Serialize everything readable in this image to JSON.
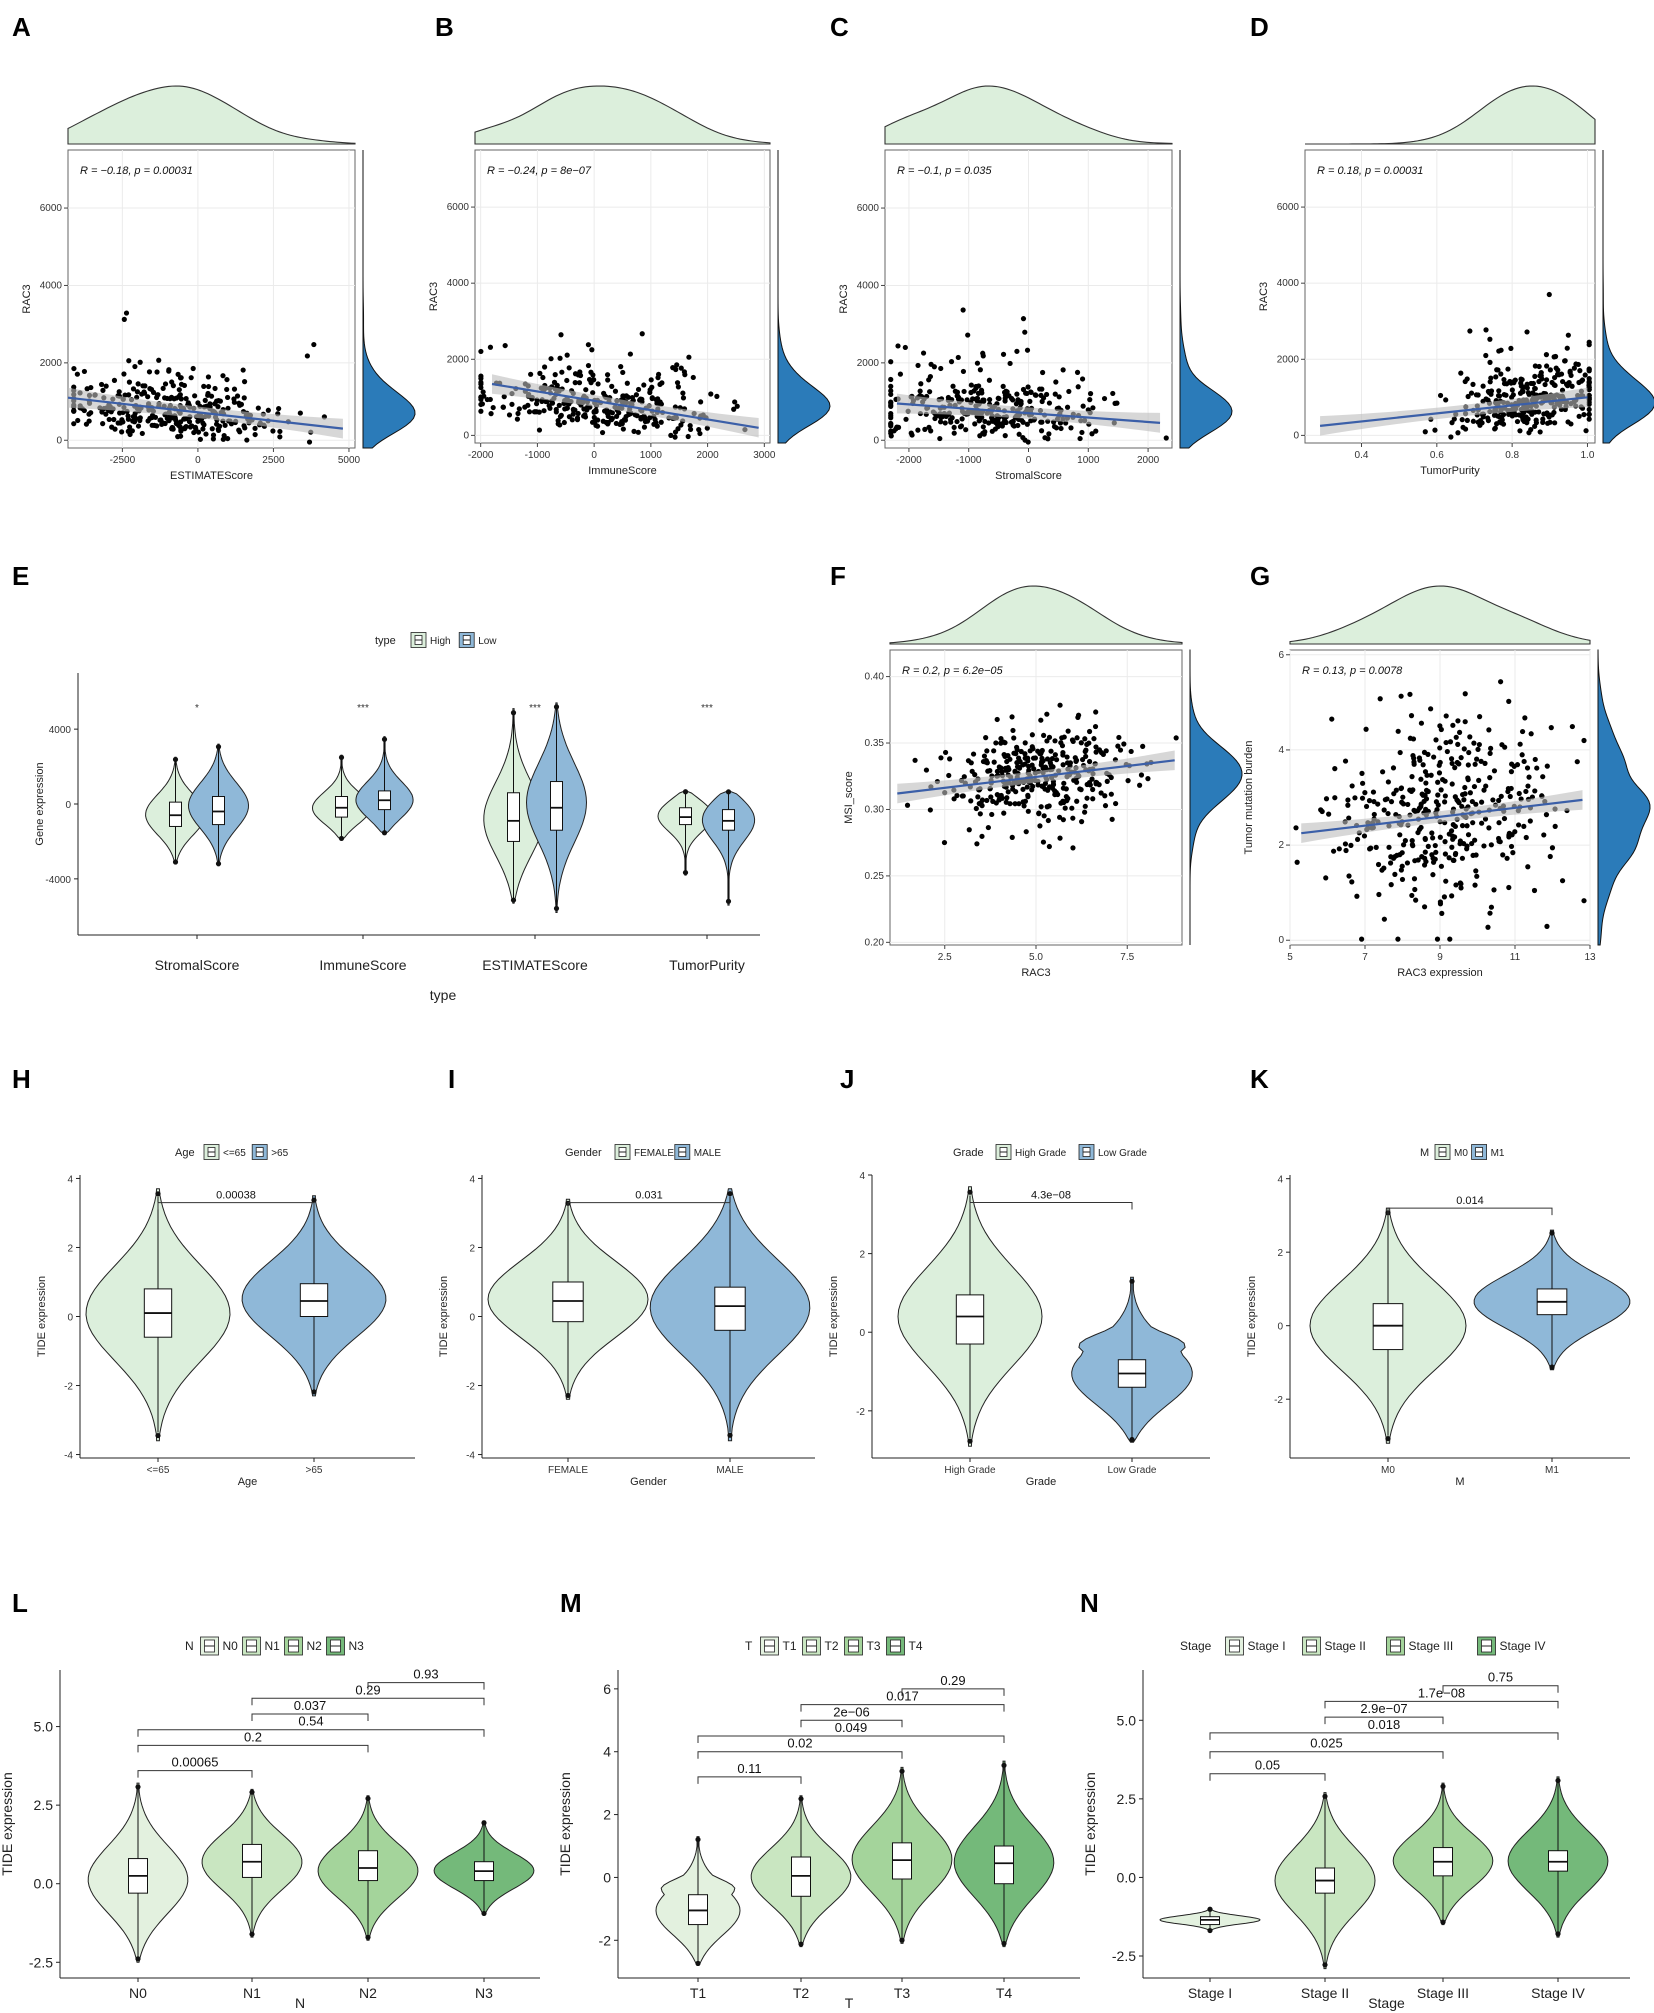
{
  "panels_text": {
    "labels": [
      "A",
      "B",
      "C",
      "D",
      "E",
      "F",
      "G",
      "H",
      "I",
      "J",
      "K",
      "L",
      "M",
      "N"
    ]
  },
  "colors": {
    "density_top": "#dcefdc",
    "density_right": "#2b7bb9",
    "point": "#000000",
    "fit_line": "#3b5fa8",
    "ci_band": "#bdbdbd",
    "grid": "#ebebeb",
    "violin_green": "#dcefdc",
    "violin_blue": "#8fb8d8",
    "greens": [
      "#e3f1df",
      "#c9e6c1",
      "#a4d49b",
      "#74b97a"
    ]
  },
  "chart_data": [
    {
      "id": "A",
      "type": "scatter",
      "annotation": "R = −0.18, p = 0.00031",
      "xlabel": "ESTIMATEScore",
      "ylabel": "RAC3",
      "xlim": [
        -4300,
        5200
      ],
      "ylim": [
        -200,
        7500
      ],
      "xticks": [
        -2500,
        0,
        2500,
        5000
      ],
      "xtick_labels": [
        "-2500",
        "0",
        "2500",
        "5000"
      ],
      "yticks": [
        0,
        2000,
        4000,
        6000
      ],
      "ytick_labels": [
        "0",
        "2000",
        "4000",
        "6000"
      ],
      "fit": {
        "x": [
          -4300,
          4800
        ],
        "y": [
          1100,
          300
        ]
      },
      "n_points": 330,
      "x_center": -700,
      "x_spread": 1900,
      "seed": 11
    },
    {
      "id": "B",
      "type": "scatter",
      "annotation": "R = −0.24, p = 8e−07",
      "xlabel": "ImmuneScore",
      "ylabel": "RAC3",
      "xlim": [
        -2100,
        3100
      ],
      "ylim": [
        -200,
        7500
      ],
      "xticks": [
        -2000,
        -1000,
        0,
        1000,
        2000,
        3000
      ],
      "xtick_labels": [
        "-2000",
        "-1000",
        "0",
        "1000",
        "2000",
        "3000"
      ],
      "yticks": [
        0,
        2000,
        4000,
        6000
      ],
      "ytick_labels": [
        "0",
        "2000",
        "4000",
        "6000"
      ],
      "fit": {
        "x": [
          -1800,
          2900
        ],
        "y": [
          1350,
          200
        ]
      },
      "n_points": 330,
      "x_center": 100,
      "x_spread": 1000,
      "seed": 23
    },
    {
      "id": "C",
      "type": "scatter",
      "annotation": "R = −0.1, p = 0.035",
      "xlabel": "StromalScore",
      "ylabel": "RAC3",
      "xlim": [
        -2400,
        2400
      ],
      "ylim": [
        -200,
        7500
      ],
      "xticks": [
        -2000,
        -1000,
        0,
        1000,
        2000
      ],
      "xtick_labels": [
        "-2000",
        "-1000",
        "0",
        "1000",
        "2000"
      ],
      "yticks": [
        0,
        2000,
        4000,
        6000
      ],
      "ytick_labels": [
        "0",
        "2000",
        "4000",
        "6000"
      ],
      "fit": {
        "x": [
          -2200,
          2200
        ],
        "y": [
          950,
          450
        ]
      },
      "n_points": 330,
      "x_center": -600,
      "x_spread": 1000,
      "seed": 37
    },
    {
      "id": "D",
      "type": "scatter",
      "annotation": "R = 0.18, p = 0.00031",
      "xlabel": "TumorPurity",
      "ylabel": "RAC3",
      "xlim": [
        0.25,
        1.02
      ],
      "ylim": [
        -200,
        7500
      ],
      "xticks": [
        0.4,
        0.6,
        0.8,
        1.0
      ],
      "xtick_labels": [
        "0.4",
        "0.6",
        "0.8",
        "1.0"
      ],
      "yticks": [
        0,
        2000,
        4000,
        6000
      ],
      "ytick_labels": [
        "0",
        "2000",
        "4000",
        "6000"
      ],
      "fit": {
        "x": [
          0.29,
          1.0
        ],
        "y": [
          250,
          1000
        ]
      },
      "n_points": 330,
      "x_center": 0.85,
      "x_spread": 0.11,
      "seed": 41
    },
    {
      "id": "E",
      "type": "violin",
      "legend_title": "type",
      "legend_items": [
        "High",
        "Low"
      ],
      "xlabel": "type",
      "ylabel": "Gene expression",
      "ylim": [
        -7000,
        7000
      ],
      "yticks": [
        -4000,
        0,
        4000
      ],
      "ytick_labels": [
        "-4000",
        "0",
        "4000"
      ],
      "categories": [
        "StromalScore",
        "ImmuneScore",
        "ESTIMATEScore",
        "TumorPurity"
      ],
      "significance": [
        "*",
        "***",
        "***",
        "***"
      ],
      "groups": [
        {
          "cat": 0,
          "name": "High",
          "min": -3200,
          "max": 2500,
          "q1": -1200,
          "med": -600,
          "q3": 100,
          "mode": -600
        },
        {
          "cat": 0,
          "name": "Low",
          "min": -3300,
          "max": 3200,
          "q1": -1100,
          "med": -400,
          "q3": 400,
          "mode": -100
        },
        {
          "cat": 1,
          "name": "High",
          "min": -1900,
          "max": 2600,
          "q1": -700,
          "med": -200,
          "q3": 400,
          "mode": -300
        },
        {
          "cat": 1,
          "name": "Low",
          "min": -1600,
          "max": 3600,
          "q1": -300,
          "med": 200,
          "q3": 700,
          "mode": 100
        },
        {
          "cat": 2,
          "name": "High",
          "min": -5300,
          "max": 5100,
          "q1": -2000,
          "med": -900,
          "q3": 600,
          "mode": -900
        },
        {
          "cat": 2,
          "name": "Low",
          "min": -5800,
          "max": 5400,
          "q1": -1400,
          "med": -200,
          "q3": 1200,
          "mode": 100
        },
        {
          "cat": 3,
          "name": "High",
          "min": -3800,
          "max": 700,
          "q1": -1100,
          "med": -700,
          "q3": -200,
          "mode": -500
        },
        {
          "cat": 3,
          "name": "Low",
          "min": -5400,
          "max": 700,
          "q1": -1400,
          "med": -900,
          "q3": -300,
          "mode": -600
        }
      ]
    },
    {
      "id": "F",
      "type": "scatter",
      "annotation": "R = 0.2, p = 6.2e−05",
      "xlabel": "RAC3",
      "ylabel": "MSI_score",
      "xlim": [
        1.0,
        9.0
      ],
      "ylim": [
        0.198,
        0.42
      ],
      "xticks": [
        2.5,
        5.0,
        7.5
      ],
      "xtick_labels": [
        "2.5",
        "5.0",
        "7.5"
      ],
      "yticks": [
        0.2,
        0.25,
        0.3,
        0.35,
        0.4
      ],
      "ytick_labels": [
        "0.20",
        "0.25",
        "0.30",
        "0.35",
        "0.40"
      ],
      "fit": {
        "x": [
          1.2,
          8.8
        ],
        "y": [
          0.312,
          0.337
        ]
      },
      "n_points": 360,
      "x_center": 5.2,
      "x_spread": 1.4,
      "seed": 53
    },
    {
      "id": "G",
      "type": "scatter",
      "annotation": "R = 0.13, p = 0.0078",
      "xlabel": "RAC3 expression",
      "ylabel": "Tumor mutation burden",
      "xlim": [
        5,
        13
      ],
      "ylim": [
        -0.1,
        6.1
      ],
      "xticks": [
        5,
        7,
        9,
        11,
        13
      ],
      "xtick_labels": [
        "5",
        "7",
        "9",
        "11",
        "13"
      ],
      "yticks": [
        0,
        2,
        4,
        6
      ],
      "ytick_labels": [
        "0",
        "2",
        "4",
        "6"
      ],
      "fit": {
        "x": [
          5.3,
          12.8
        ],
        "y": [
          2.25,
          2.95
        ]
      },
      "n_points": 400,
      "x_center": 9.0,
      "x_spread": 1.4,
      "seed": 67
    },
    {
      "id": "H",
      "type": "violin",
      "legend_title": "Age",
      "legend_items": [
        "<=65",
        ">65"
      ],
      "xlabel": "Age",
      "ylabel": "TIDE expression",
      "ylim": [
        -4.1,
        4.1
      ],
      "yticks": [
        -4,
        -2,
        0,
        2,
        4
      ],
      "ytick_labels": [
        "-4",
        "-2",
        "0",
        "2",
        "4"
      ],
      "categories": [
        "<=65",
        ">65"
      ],
      "brackets": [
        {
          "a": 0,
          "b": 1,
          "label": "0.00038",
          "y": 3.3
        }
      ],
      "groups": [
        {
          "cat": 0,
          "min": -3.6,
          "max": 3.7,
          "q1": -0.6,
          "med": 0.1,
          "q3": 0.8,
          "mode": 0.1
        },
        {
          "cat": 1,
          "min": -2.3,
          "max": 3.5,
          "q1": 0.0,
          "med": 0.45,
          "q3": 0.95,
          "mode": 0.5
        }
      ]
    },
    {
      "id": "I",
      "type": "violin",
      "legend_title": "Gender",
      "legend_items": [
        "FEMALE",
        "MALE"
      ],
      "xlabel": "Gender",
      "ylabel": "TIDE expression",
      "ylim": [
        -4.1,
        4.1
      ],
      "yticks": [
        -4,
        -2,
        0,
        2,
        4
      ],
      "ytick_labels": [
        "-4",
        "-2",
        "0",
        "2",
        "4"
      ],
      "categories": [
        "FEMALE",
        "MALE"
      ],
      "brackets": [
        {
          "a": 0,
          "b": 1,
          "label": "0.031",
          "y": 3.3
        }
      ],
      "groups": [
        {
          "cat": 0,
          "min": -2.4,
          "max": 3.4,
          "q1": -0.15,
          "med": 0.45,
          "q3": 1.0,
          "mode": 0.5
        },
        {
          "cat": 1,
          "min": -3.6,
          "max": 3.7,
          "q1": -0.4,
          "med": 0.3,
          "q3": 0.85,
          "mode": 0.3
        }
      ]
    },
    {
      "id": "J",
      "type": "violin",
      "legend_title": "Grade",
      "legend_items": [
        "High Grade",
        "Low Grade"
      ],
      "xlabel": "Grade",
      "ylabel": "TIDE expression",
      "ylim": [
        -3.2,
        4.0
      ],
      "yticks": [
        -2,
        0,
        2,
        4
      ],
      "ytick_labels": [
        "-2",
        "0",
        "2",
        "4"
      ],
      "categories": [
        "High Grade",
        "Low Grade"
      ],
      "brackets": [
        {
          "a": 0,
          "b": 1,
          "label": "4.3e−08",
          "y": 3.3
        }
      ],
      "groups": [
        {
          "cat": 0,
          "min": -2.9,
          "max": 3.7,
          "q1": -0.3,
          "med": 0.4,
          "q3": 0.95,
          "mode": 0.4
        },
        {
          "cat": 1,
          "min": -2.8,
          "max": 1.4,
          "q1": -1.4,
          "med": -1.05,
          "q3": -0.7,
          "mode": -1.1
        }
      ]
    },
    {
      "id": "K",
      "type": "violin",
      "legend_title": "M",
      "legend_items": [
        "M0",
        "M1"
      ],
      "xlabel": "M",
      "ylabel": "TIDE expression",
      "ylim": [
        -3.6,
        4.1
      ],
      "yticks": [
        -2,
        0,
        2,
        4
      ],
      "ytick_labels": [
        "-2",
        "0",
        "2",
        "4"
      ],
      "categories": [
        "M0",
        "M1"
      ],
      "brackets": [
        {
          "a": 0,
          "b": 1,
          "label": "0.014",
          "y": 3.2
        }
      ],
      "groups": [
        {
          "cat": 0,
          "min": -3.2,
          "max": 3.2,
          "q1": -0.65,
          "med": 0.0,
          "q3": 0.6,
          "mode": 0.0
        },
        {
          "cat": 1,
          "min": -1.2,
          "max": 2.6,
          "q1": 0.3,
          "med": 0.65,
          "q3": 1.0,
          "mode": 0.65
        }
      ]
    },
    {
      "id": "L",
      "type": "violin",
      "legend_title": "N",
      "legend_items": [
        "N0",
        "N1",
        "N2",
        "N3"
      ],
      "xlabel": "N",
      "ylabel": "TIDE expression",
      "ylim": [
        -3.0,
        6.8
      ],
      "yticks": [
        -2.5,
        0.0,
        2.5,
        5.0
      ],
      "ytick_labels": [
        "-2.5",
        "0.0",
        "2.5",
        "5.0"
      ],
      "categories": [
        "N0",
        "N1",
        "N2",
        "N3"
      ],
      "brackets": [
        {
          "a": 0,
          "b": 1,
          "label": "0.00065",
          "y": 3.6
        },
        {
          "a": 0,
          "b": 2,
          "label": "0.2",
          "y": 4.4
        },
        {
          "a": 0,
          "b": 3,
          "label": "0.54",
          "y": 4.9
        },
        {
          "a": 1,
          "b": 2,
          "label": "0.037",
          "y": 5.4
        },
        {
          "a": 1,
          "b": 3,
          "label": "0.29",
          "y": 5.9
        },
        {
          "a": 2,
          "b": 3,
          "label": "0.93",
          "y": 6.4
        }
      ],
      "groups": [
        {
          "cat": 0,
          "min": -2.5,
          "max": 3.2,
          "q1": -0.3,
          "med": 0.25,
          "q3": 0.8,
          "mode": 0.1
        },
        {
          "cat": 1,
          "min": -1.7,
          "max": 3.0,
          "q1": 0.2,
          "med": 0.7,
          "q3": 1.25,
          "mode": 0.7
        },
        {
          "cat": 2,
          "min": -1.8,
          "max": 2.8,
          "q1": 0.1,
          "med": 0.5,
          "q3": 1.05,
          "mode": 0.4
        },
        {
          "cat": 3,
          "min": -1.0,
          "max": 2.0,
          "q1": 0.1,
          "med": 0.4,
          "q3": 0.7,
          "mode": 0.4
        }
      ]
    },
    {
      "id": "M",
      "type": "violin",
      "legend_title": "T",
      "legend_items": [
        "T1",
        "T2",
        "T3",
        "T4"
      ],
      "xlabel": "T",
      "ylabel": "TIDE expression",
      "ylim": [
        -3.2,
        6.6
      ],
      "yticks": [
        -2,
        0,
        2,
        4,
        6
      ],
      "ytick_labels": [
        "-2",
        "0",
        "2",
        "4",
        "6"
      ],
      "categories": [
        "T1",
        "T2",
        "T3",
        "T4"
      ],
      "brackets": [
        {
          "a": 0,
          "b": 1,
          "label": "0.11",
          "y": 3.2
        },
        {
          "a": 0,
          "b": 2,
          "label": "0.02",
          "y": 4.0
        },
        {
          "a": 0,
          "b": 3,
          "label": "0.049",
          "y": 4.5
        },
        {
          "a": 1,
          "b": 2,
          "label": "2e−06",
          "y": 5.0
        },
        {
          "a": 1,
          "b": 3,
          "label": "0.017",
          "y": 5.5
        },
        {
          "a": 2,
          "b": 3,
          "label": "0.29",
          "y": 6.0
        }
      ],
      "groups": [
        {
          "cat": 0,
          "min": -2.8,
          "max": 1.3,
          "q1": -1.5,
          "med": -1.05,
          "q3": -0.55,
          "mode": -1.1
        },
        {
          "cat": 1,
          "min": -2.2,
          "max": 2.6,
          "q1": -0.6,
          "med": 0.05,
          "q3": 0.65,
          "mode": 0.0
        },
        {
          "cat": 2,
          "min": -2.1,
          "max": 3.5,
          "q1": -0.05,
          "med": 0.55,
          "q3": 1.1,
          "mode": 0.55
        },
        {
          "cat": 3,
          "min": -2.2,
          "max": 3.7,
          "q1": -0.2,
          "med": 0.45,
          "q3": 1.0,
          "mode": 0.45
        }
      ]
    },
    {
      "id": "N",
      "type": "violin",
      "legend_title": "Stage",
      "legend_items": [
        "Stage I",
        "Stage II",
        "Stage III",
        "Stage IV"
      ],
      "xlabel": "Stage",
      "ylabel": "TIDE expression",
      "ylim": [
        -3.2,
        6.6
      ],
      "yticks": [
        -2.5,
        0.0,
        2.5,
        5.0
      ],
      "ytick_labels": [
        "-2.5",
        "0.0",
        "2.5",
        "5.0"
      ],
      "categories": [
        "Stage I",
        "Stage II",
        "Stage III",
        "Stage IV"
      ],
      "brackets": [
        {
          "a": 0,
          "b": 1,
          "label": "0.05",
          "y": 3.3
        },
        {
          "a": 0,
          "b": 2,
          "label": "0.025",
          "y": 4.0
        },
        {
          "a": 0,
          "b": 3,
          "label": "0.018",
          "y": 4.6
        },
        {
          "a": 1,
          "b": 2,
          "label": "2.9e−07",
          "y": 5.1
        },
        {
          "a": 1,
          "b": 3,
          "label": "1.7e−08",
          "y": 5.6
        },
        {
          "a": 2,
          "b": 3,
          "label": "0.75",
          "y": 6.1
        }
      ],
      "groups": [
        {
          "cat": 0,
          "min": -1.7,
          "max": -1.0,
          "q1": -1.5,
          "med": -1.35,
          "q3": -1.25,
          "mode": -1.35
        },
        {
          "cat": 1,
          "min": -2.9,
          "max": 2.7,
          "q1": -0.5,
          "med": -0.1,
          "q3": 0.3,
          "mode": -0.1
        },
        {
          "cat": 2,
          "min": -1.5,
          "max": 3.0,
          "q1": 0.05,
          "med": 0.5,
          "q3": 0.95,
          "mode": 0.5
        },
        {
          "cat": 3,
          "min": -1.9,
          "max": 3.2,
          "q1": 0.2,
          "med": 0.5,
          "q3": 0.85,
          "mode": 0.5
        }
      ]
    }
  ]
}
